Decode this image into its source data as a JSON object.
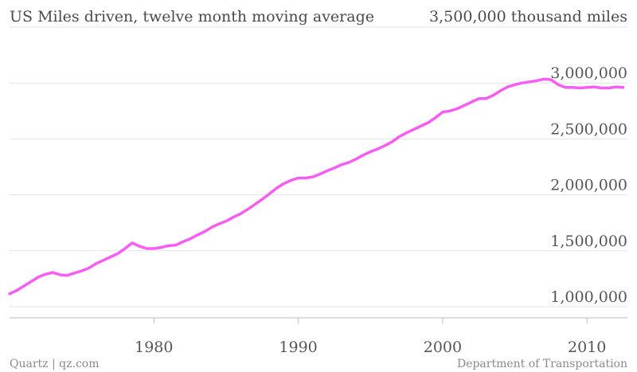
{
  "chart_data": {
    "type": "line",
    "title": "US Miles driven, twelve month moving average",
    "ylabel": "thousand miles",
    "top_tick_label": "3,500,000 thousand miles",
    "xlim": [
      1970.0,
      2012.8
    ],
    "ylim": [
      900000,
      3500000
    ],
    "x_ticks": [
      1980,
      1990,
      2000,
      2010
    ],
    "x_tick_labels": [
      "1980",
      "1990",
      "2000",
      "2010"
    ],
    "y_ticks": [
      1000000,
      1500000,
      2000000,
      2500000,
      3000000
    ],
    "y_tick_labels": [
      "1,000,000",
      "1,500,000",
      "2,000,000",
      "2,500,000",
      "3,000,000"
    ],
    "grid": true,
    "series": [
      {
        "color": "#f75cf3",
        "x": [
          1970.0,
          1970.5,
          1971,
          1971.5,
          1972,
          1972.5,
          1973,
          1973.5,
          1974,
          1974.5,
          1975,
          1975.5,
          1976,
          1976.5,
          1977,
          1977.5,
          1978,
          1978.5,
          1979,
          1979.5,
          1980,
          1980.5,
          1981,
          1981.5,
          1982,
          1982.5,
          1983,
          1983.5,
          1984,
          1984.5,
          1985,
          1985.5,
          1986,
          1986.5,
          1987,
          1987.5,
          1988,
          1988.5,
          1989,
          1989.5,
          1990,
          1990.5,
          1991,
          1991.5,
          1992,
          1992.5,
          1993,
          1993.5,
          1994,
          1994.5,
          1995,
          1995.5,
          1996,
          1996.5,
          1997,
          1997.5,
          1998,
          1998.5,
          1999,
          1999.5,
          2000,
          2000.5,
          2001,
          2001.5,
          2002,
          2002.5,
          2003,
          2003.5,
          2004,
          2004.5,
          2005,
          2005.5,
          2006,
          2006.5,
          2007,
          2007.5,
          2008,
          2008.5,
          2009,
          2009.5,
          2010,
          2010.5,
          2011,
          2011.5,
          2012,
          2012.5
        ],
        "values": [
          1115000,
          1145000,
          1185000,
          1225000,
          1265000,
          1290000,
          1305000,
          1285000,
          1280000,
          1300000,
          1320000,
          1345000,
          1385000,
          1415000,
          1445000,
          1475000,
          1520000,
          1570000,
          1540000,
          1520000,
          1520000,
          1530000,
          1545000,
          1550000,
          1580000,
          1605000,
          1640000,
          1670000,
          1710000,
          1740000,
          1765000,
          1800000,
          1830000,
          1870000,
          1915000,
          1960000,
          2010000,
          2060000,
          2100000,
          2130000,
          2150000,
          2150000,
          2160000,
          2185000,
          2215000,
          2240000,
          2270000,
          2290000,
          2320000,
          2355000,
          2385000,
          2410000,
          2440000,
          2475000,
          2520000,
          2555000,
          2585000,
          2615000,
          2645000,
          2690000,
          2740000,
          2750000,
          2770000,
          2800000,
          2830000,
          2860000,
          2860000,
          2890000,
          2930000,
          2965000,
          2985000,
          3000000,
          3010000,
          3020000,
          3035000,
          3030000,
          2985000,
          2960000,
          2960000,
          2955000,
          2960000,
          2965000,
          2955000,
          2955000,
          2965000,
          2960000
        ]
      }
    ]
  },
  "footer": {
    "left": "Quartz | qz.com",
    "right": "Department of Transportation"
  }
}
